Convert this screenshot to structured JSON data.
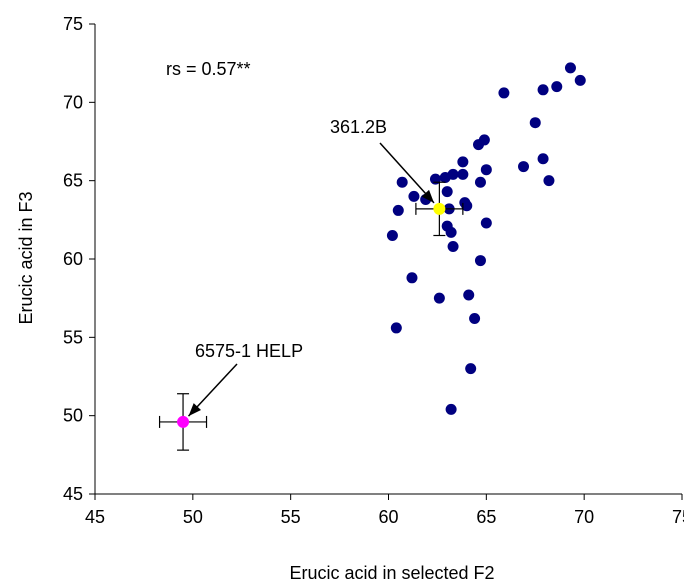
{
  "chart_data": {
    "type": "scatter",
    "xlabel": "Erucic acid in selected F2",
    "ylabel": "Erucic acid in F3",
    "xlim": [
      45,
      75
    ],
    "ylim": [
      45,
      75
    ],
    "xticks": [
      45,
      50,
      55,
      60,
      65,
      70,
      75
    ],
    "yticks": [
      45,
      50,
      55,
      60,
      65,
      70,
      75
    ],
    "grid": false,
    "annotations": {
      "correlation": "rs = 0.57**",
      "highlight_1": "361.2B",
      "highlight_2": "6575-1 HELP"
    },
    "series": [
      {
        "color": "#000080",
        "points": [
          [
            60.2,
            61.5
          ],
          [
            60.4,
            55.6
          ],
          [
            60.5,
            63.1
          ],
          [
            60.7,
            64.9
          ],
          [
            61.2,
            58.8
          ],
          [
            61.3,
            64.0
          ],
          [
            61.9,
            63.8
          ],
          [
            62.4,
            65.1
          ],
          [
            62.6,
            57.5
          ],
          [
            62.9,
            65.2
          ],
          [
            63.0,
            64.3
          ],
          [
            63.0,
            62.1
          ],
          [
            63.1,
            63.2
          ],
          [
            63.2,
            61.7
          ],
          [
            63.3,
            60.8
          ],
          [
            63.3,
            65.4
          ],
          [
            63.2,
            50.4
          ],
          [
            63.8,
            65.4
          ],
          [
            63.8,
            66.2
          ],
          [
            63.9,
            63.6
          ],
          [
            64.0,
            63.4
          ],
          [
            64.1,
            57.7
          ],
          [
            64.2,
            53.0
          ],
          [
            64.4,
            56.2
          ],
          [
            64.6,
            67.3
          ],
          [
            64.7,
            64.9
          ],
          [
            64.7,
            59.9
          ],
          [
            64.9,
            67.6
          ],
          [
            65.0,
            65.7
          ],
          [
            65.0,
            62.3
          ],
          [
            65.9,
            70.6
          ],
          [
            66.9,
            65.9
          ],
          [
            67.5,
            68.7
          ],
          [
            67.9,
            70.8
          ],
          [
            67.9,
            66.4
          ],
          [
            68.2,
            65.0
          ],
          [
            68.6,
            71.0
          ],
          [
            69.3,
            72.2
          ],
          [
            69.8,
            71.4
          ]
        ]
      }
    ],
    "highlighted_points": [
      {
        "label": "361.2B",
        "x": 62.6,
        "y": 63.2,
        "xerr": 1.2,
        "yerr": 1.7,
        "color": "#ffff00"
      },
      {
        "label": "6575-1 HELP",
        "x": 49.5,
        "y": 49.6,
        "xerr": 1.2,
        "yerr": 1.8,
        "color": "#ff00ff"
      }
    ]
  }
}
